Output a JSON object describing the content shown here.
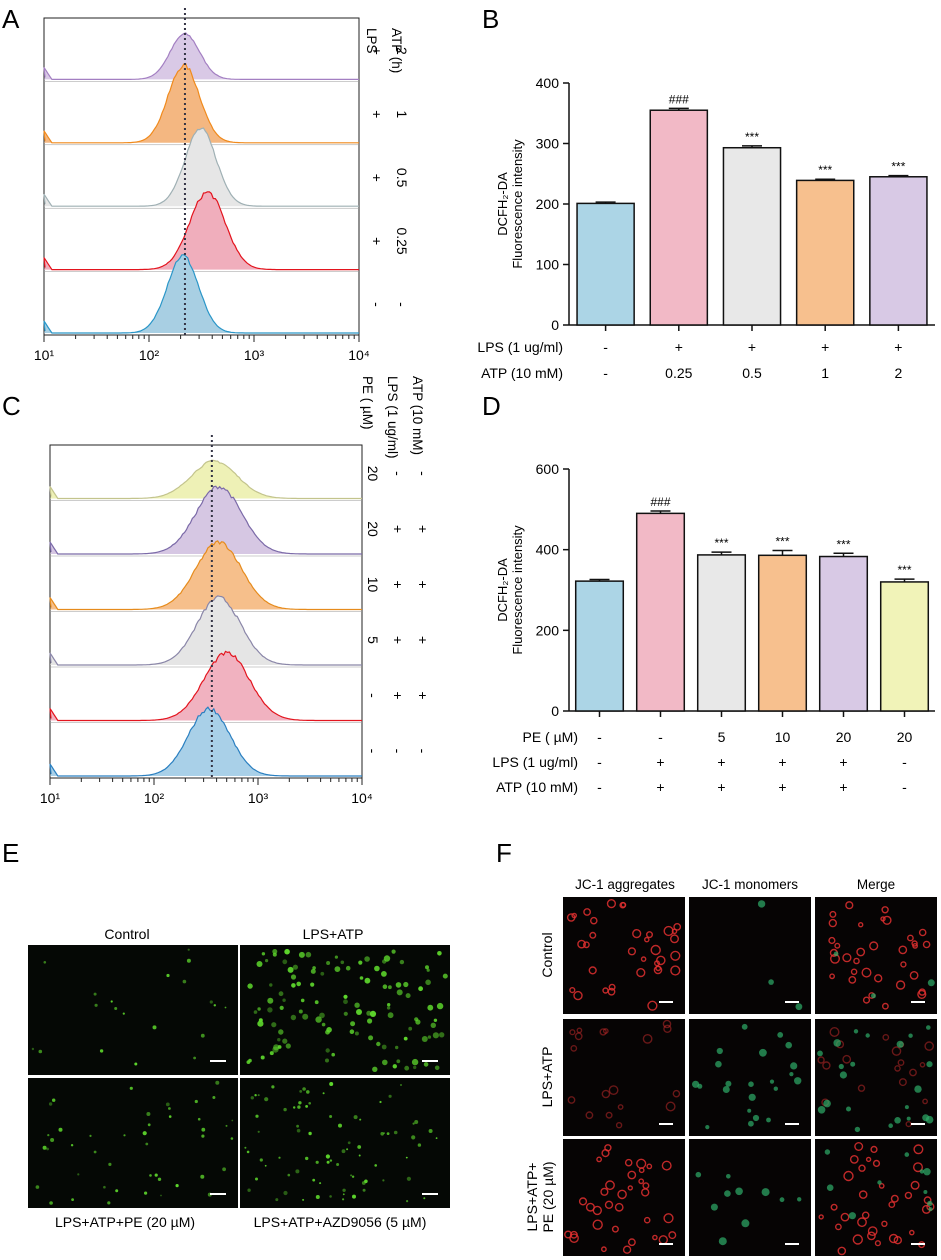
{
  "panel_labels": {
    "a": "A",
    "b": "B",
    "c": "C",
    "d": "D",
    "e": "E",
    "f": "F"
  },
  "chart_data": [
    {
      "id": "A",
      "type": "histogram-overlay",
      "x_scale": "log",
      "xlim": [
        10,
        10000
      ],
      "xticks": [
        "10¹",
        "10²",
        "10³",
        "10⁴"
      ],
      "marker_x": 220,
      "row_header": [
        "LPS",
        "ATP (h)"
      ],
      "tracks": [
        {
          "LPS": "+",
          "ATP": "2",
          "peak": 220,
          "width": 0.14,
          "fill": "#d9c9e6",
          "stroke": "#a37fc2"
        },
        {
          "LPS": "+",
          "ATP": "1",
          "peak": 215,
          "width": 0.15,
          "fill": "#f4b781",
          "stroke": "#f08a1c"
        },
        {
          "LPS": "+",
          "ATP": "0.5",
          "peak": 310,
          "width": 0.15,
          "fill": "#e6e6e6",
          "stroke": "#9fb0b4"
        },
        {
          "LPS": "+",
          "ATP": "0.25",
          "peak": 360,
          "width": 0.17,
          "fill": "#f0aebc",
          "stroke": "#e3141e"
        },
        {
          "LPS": "-",
          "ATP": "-",
          "peak": 210,
          "width": 0.15,
          "fill": "#a8cfe3",
          "stroke": "#2a96c8"
        }
      ]
    },
    {
      "id": "B",
      "type": "bar",
      "ylabel": [
        "DCFH₂-DA",
        "Fluorescence intensity"
      ],
      "ylim": [
        0,
        400
      ],
      "yticks": [
        0,
        100,
        200,
        300,
        400
      ],
      "values": [
        201,
        355,
        293,
        239,
        245
      ],
      "errors": [
        2,
        3,
        3,
        2,
        2
      ],
      "colors": [
        "#acd5e6",
        "#f2b9c6",
        "#e8e8e8",
        "#f7c08e",
        "#d8c9e5"
      ],
      "annotations": [
        "",
        "###",
        "***",
        "***",
        "***"
      ],
      "conditions": [
        {
          "label": "LPS (1 ug/ml)",
          "values": [
            "-",
            "+",
            "+",
            "+",
            "+"
          ]
        },
        {
          "label": "ATP (10 mM)",
          "values": [
            "-",
            "0.25",
            "0.5",
            "1",
            "2"
          ]
        }
      ]
    },
    {
      "id": "C",
      "type": "histogram-overlay",
      "x_scale": "log",
      "xlim": [
        10,
        10000
      ],
      "xticks": [
        "10¹",
        "10²",
        "10³",
        "10⁴"
      ],
      "marker_x": 360,
      "row_header": [
        "PE ( µM)",
        "LPS (1 ug/ml)",
        "ATP (10 mM)"
      ],
      "tracks": [
        {
          "PE": "20",
          "LPS": "-",
          "ATP": "-",
          "peak": 380,
          "width": 0.22,
          "fill": "#eef1b6",
          "stroke": "#c3c48d"
        },
        {
          "PE": "20",
          "LPS": "+",
          "ATP": "+",
          "peak": 420,
          "width": 0.22,
          "fill": "#d6c7e3",
          "stroke": "#7b6aa8"
        },
        {
          "PE": "10",
          "LPS": "+",
          "ATP": "+",
          "peak": 420,
          "width": 0.22,
          "fill": "#f6bf8b",
          "stroke": "#e68b1c"
        },
        {
          "PE": "5",
          "LPS": "+",
          "ATP": "+",
          "peak": 420,
          "width": 0.21,
          "fill": "#e5e5e5",
          "stroke": "#8a86a8"
        },
        {
          "PE": "-",
          "LPS": "+",
          "ATP": "+",
          "peak": 500,
          "width": 0.22,
          "fill": "#f1b2c0",
          "stroke": "#e3141e"
        },
        {
          "PE": "-",
          "LPS": "-",
          "ATP": "-",
          "peak": 340,
          "width": 0.2,
          "fill": "#a9d0e8",
          "stroke": "#2a7fc0"
        }
      ]
    },
    {
      "id": "D",
      "type": "bar",
      "ylabel": [
        "DCFH₂-DA",
        "Fluorescence intensity"
      ],
      "ylim": [
        0,
        600
      ],
      "yticks": [
        0,
        200,
        400,
        600
      ],
      "values": [
        322,
        490,
        387,
        386,
        383,
        320
      ],
      "errors": [
        4,
        6,
        7,
        12,
        8,
        7
      ],
      "colors": [
        "#acd5e6",
        "#f2b9c6",
        "#e8e8e8",
        "#f7c08e",
        "#d8c9e5",
        "#f1f3b8"
      ],
      "annotations": [
        "",
        "###",
        "***",
        "***",
        "***",
        "***"
      ],
      "conditions": [
        {
          "label": "PE ( µM)",
          "values": [
            "-",
            "-",
            "5",
            "10",
            "20",
            "20"
          ]
        },
        {
          "label": "LPS (1 ug/ml)",
          "values": [
            "-",
            "+",
            "+",
            "+",
            "+",
            "-"
          ]
        },
        {
          "label": "ATP (10 mM)",
          "values": [
            "-",
            "+",
            "+",
            "+",
            "+",
            "-"
          ]
        }
      ]
    }
  ],
  "panel_e": {
    "labels": [
      "Control",
      "LPS+ATP",
      "LPS+ATP+PE (20 µM)",
      "LPS+ATP+AZD9056 (5 µM)"
    ],
    "cell_color": "#5dd62c",
    "densities": [
      20,
      120,
      45,
      80
    ]
  },
  "panel_f": {
    "columns": [
      "JC-1 aggregates",
      "JC-1 monomers",
      "Merge"
    ],
    "rows": [
      "Control",
      "LPS+ATP",
      "LPS+ATP+",
      "PE (20 µM)"
    ],
    "aggregate_color": "#e23030",
    "monomer_color": "#2fae6a"
  }
}
